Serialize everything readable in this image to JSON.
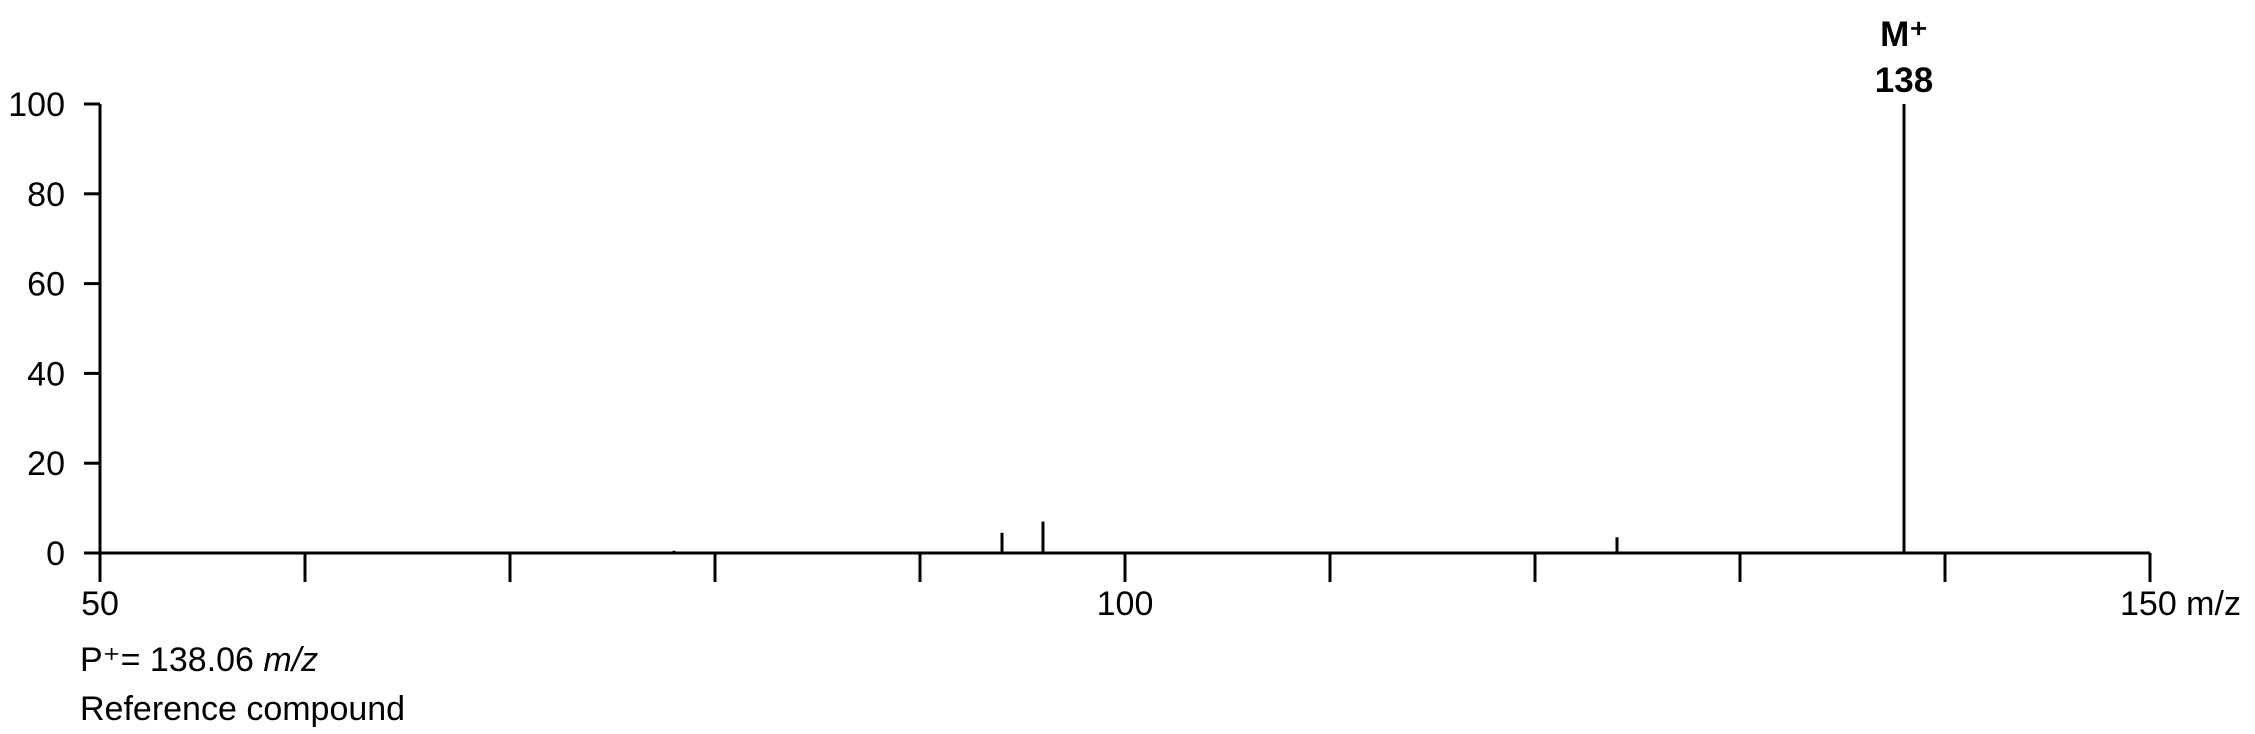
{
  "chart_data": {
    "type": "bar",
    "title": "",
    "xlabel": "",
    "ylabel": "",
    "x_unit": "m/z",
    "xlim": [
      50,
      150
    ],
    "ylim": [
      0,
      100
    ],
    "x_ticks": [
      50,
      60,
      70,
      80,
      90,
      100,
      110,
      120,
      130,
      140,
      150
    ],
    "x_tick_labels": [
      "50",
      "100",
      "150"
    ],
    "y_ticks": [
      0,
      20,
      40,
      60,
      80,
      100
    ],
    "peaks": [
      {
        "x": 78,
        "y": 0.5
      },
      {
        "x": 94,
        "y": 4.5
      },
      {
        "x": 96,
        "y": 7
      },
      {
        "x": 124,
        "y": 3.5
      },
      {
        "x": 138,
        "y": 100
      }
    ],
    "annotation": {
      "x": 138,
      "line1": "M⁺",
      "line2": "138"
    },
    "grid": false,
    "legend": "none",
    "color": "#000000"
  },
  "notes": {
    "p_prefix": "P⁺= 138.06",
    "p_unit": "m/z",
    "caption": "Reference compound"
  }
}
